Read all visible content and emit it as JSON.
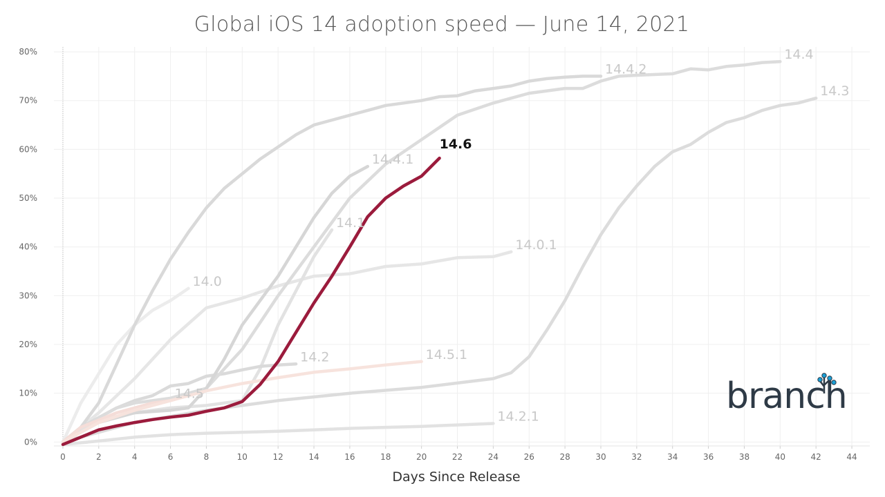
{
  "chart_data": {
    "type": "line",
    "title": "Global iOS 14 adoption speed — June 14, 2021",
    "xlabel": "Days Since Release",
    "ylabel": "",
    "xlim": [
      -0.5,
      45
    ],
    "ylim": [
      -0.8,
      81
    ],
    "x_ticks": [
      0,
      2,
      4,
      6,
      8,
      10,
      12,
      14,
      16,
      18,
      20,
      22,
      24,
      26,
      28,
      30,
      32,
      34,
      36,
      38,
      40,
      42,
      44
    ],
    "y_ticks": [
      0,
      10,
      20,
      30,
      40,
      50,
      60,
      70,
      80
    ],
    "y_tick_labels": [
      "0%",
      "10%",
      "20%",
      "30%",
      "40%",
      "50%",
      "60%",
      "70%",
      "80%"
    ],
    "grid": true,
    "highlight_color": "#9b1b3c",
    "muted_color": "#d5d5d5",
    "series": [
      {
        "name": "14.0",
        "highlight": false,
        "color": "#ececec",
        "x": [
          0,
          1,
          2,
          3,
          4,
          5,
          6,
          7
        ],
        "y": [
          0,
          8,
          14,
          20,
          24,
          27,
          29,
          31.5
        ]
      },
      {
        "name": "14.0.1",
        "highlight": false,
        "color": "#e6e6e6",
        "x": [
          0,
          2,
          4,
          6,
          8,
          10,
          12,
          14,
          16,
          18,
          20,
          22,
          24,
          25
        ],
        "y": [
          0,
          6,
          13,
          21,
          27.5,
          29.5,
          32,
          34,
          34.5,
          36,
          36.5,
          37.8,
          38,
          39
        ]
      },
      {
        "name": "14.1",
        "highlight": false,
        "color": "#e2e2e2",
        "x": [
          0,
          2,
          4,
          6,
          8,
          10,
          11,
          12,
          13,
          14,
          15
        ],
        "y": [
          0,
          4.5,
          6,
          7,
          7.5,
          8.5,
          15,
          24,
          31,
          38,
          43.5
        ]
      },
      {
        "name": "14.2",
        "highlight": false,
        "color": "#dadada",
        "x": [
          0,
          1,
          2,
          3,
          4,
          5,
          6,
          7,
          8,
          9,
          10,
          11,
          12,
          13
        ],
        "y": [
          0,
          3,
          5,
          7,
          8.5,
          9.5,
          11.5,
          12,
          13.5,
          14,
          14.8,
          15.5,
          15.8,
          16
        ]
      },
      {
        "name": "14.2.1",
        "highlight": false,
        "color": "#e2e2e2",
        "x": [
          0,
          2,
          4,
          6,
          8,
          10,
          12,
          14,
          16,
          18,
          20,
          22,
          24
        ],
        "y": [
          -0.5,
          0.2,
          1,
          1.5,
          1.8,
          2,
          2.2,
          2.5,
          2.8,
          3,
          3.2,
          3.5,
          3.8
        ]
      },
      {
        "name": "14.3",
        "highlight": false,
        "color": "#dcdcdc",
        "x": [
          0,
          4,
          8,
          12,
          16,
          20,
          24,
          25,
          26,
          27,
          28,
          29,
          30,
          31,
          32,
          33,
          34,
          35,
          36,
          37,
          38,
          39,
          40,
          41,
          42
        ],
        "y": [
          0,
          4,
          6.5,
          8.5,
          10,
          11.2,
          13,
          14.2,
          17.5,
          23,
          29,
          36,
          42.5,
          48,
          52.5,
          56.5,
          59.5,
          61,
          63.5,
          65.5,
          66.5,
          68,
          69,
          69.5,
          70.5
        ]
      },
      {
        "name": "14.4",
        "highlight": false,
        "color": "#dcdcdc",
        "x": [
          0,
          1,
          2,
          3,
          4,
          6,
          8,
          10,
          12,
          14,
          16,
          18,
          20,
          22,
          24,
          26,
          28,
          29,
          30,
          31,
          32,
          34,
          35,
          36,
          37,
          38,
          39,
          40
        ],
        "y": [
          0,
          3,
          5,
          7,
          8,
          9,
          11,
          19,
          30,
          40,
          50,
          57,
          62,
          67,
          69.5,
          71.5,
          72.5,
          72.5,
          74,
          75,
          75.2,
          75.5,
          76.5,
          76.3,
          77,
          77.3,
          77.8,
          78
        ]
      },
      {
        "name": "14.4.1",
        "highlight": false,
        "color": "#d6d6d6",
        "x": [
          0,
          2,
          4,
          6,
          7,
          8,
          9,
          10,
          11,
          12,
          13,
          14,
          15,
          16,
          17
        ],
        "y": [
          0,
          4,
          6,
          6.5,
          7,
          11,
          17,
          24,
          29,
          34,
          40,
          46,
          51,
          54.5,
          56.5
        ]
      },
      {
        "name": "14.4.2",
        "highlight": false,
        "color": "#d9d9d9",
        "x": [
          0,
          1,
          2,
          3,
          4,
          5,
          6,
          7,
          8,
          9,
          10,
          11,
          12,
          13,
          14,
          15,
          16,
          17,
          18,
          19,
          20,
          21,
          22,
          23,
          24,
          25,
          26,
          27,
          28,
          29,
          30
        ],
        "y": [
          0,
          3,
          8,
          16,
          24,
          31,
          37.5,
          43,
          48,
          52,
          55,
          58,
          60.5,
          63,
          65,
          66,
          67,
          68,
          69,
          69.5,
          70,
          70.8,
          71,
          72,
          72.5,
          73,
          74,
          74.5,
          74.8,
          75,
          75
        ]
      },
      {
        "name": "14.5",
        "highlight": false,
        "color": "#f5ddd8",
        "x": [
          0,
          1,
          2,
          3,
          4,
          5,
          6
        ],
        "y": [
          0,
          3,
          4.5,
          6,
          7,
          8,
          8.5
        ]
      },
      {
        "name": "14.5.1",
        "highlight": false,
        "color": "#f7e3dd",
        "x": [
          0,
          2,
          4,
          6,
          8,
          10,
          12,
          14,
          16,
          18,
          20
        ],
        "y": [
          0,
          4,
          6.5,
          8.5,
          10.5,
          12,
          13.2,
          14.3,
          15,
          15.8,
          16.5
        ]
      },
      {
        "name": "14.6",
        "highlight": true,
        "color": "#9b1b3c",
        "x": [
          0,
          1,
          2,
          3,
          4,
          5,
          6,
          7,
          8,
          9,
          10,
          11,
          12,
          13,
          14,
          15,
          16,
          17,
          18,
          19,
          20,
          21
        ],
        "y": [
          -0.5,
          1,
          2.5,
          3.3,
          4,
          4.6,
          5.1,
          5.5,
          6.3,
          7,
          8.3,
          11.8,
          16.5,
          22.5,
          28.5,
          34,
          40,
          46.2,
          50,
          52.5,
          54.5,
          58.2
        ]
      }
    ]
  },
  "logo": {
    "text": "branch",
    "tree_color": "#1a9fd6"
  }
}
